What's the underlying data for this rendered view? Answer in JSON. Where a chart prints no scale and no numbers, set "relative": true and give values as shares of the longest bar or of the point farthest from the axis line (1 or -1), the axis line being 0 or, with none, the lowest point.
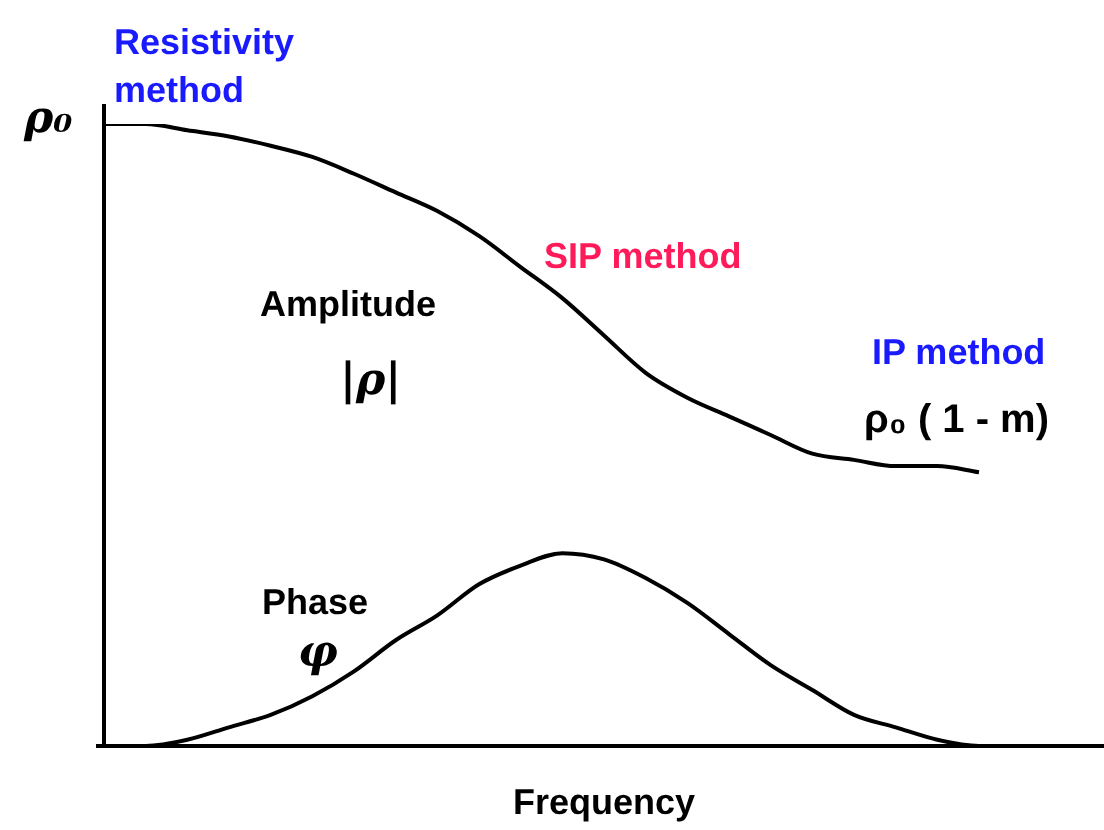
{
  "chart_data": {
    "type": "line",
    "relative": true,
    "xlabel": "Frequency",
    "legend": false,
    "marker": "none",
    "grid": false,
    "categories": [
      null,
      null,
      null,
      null,
      null,
      null,
      null,
      null,
      null,
      null,
      null,
      null,
      null,
      null,
      null,
      null,
      null,
      null,
      null,
      null,
      null,
      null,
      null,
      null,
      null
    ],
    "series": [
      {
        "name": "Amplitude |ρ|",
        "color": "#000000",
        "values": [
          1.0,
          1.0,
          0.99,
          0.98,
          0.965,
          0.947,
          0.92,
          0.89,
          0.86,
          0.82,
          0.77,
          0.72,
          0.66,
          0.6,
          0.56,
          0.53,
          0.5,
          0.47,
          0.46,
          0.45,
          0.45,
          0.44,
          null,
          null,
          null
        ]
      },
      {
        "name": "Phase φ",
        "color": "#000000",
        "values": [
          0,
          0,
          0.01,
          0.03,
          0.05,
          0.08,
          0.12,
          0.17,
          0.21,
          0.26,
          0.29,
          0.31,
          0.3,
          0.27,
          0.23,
          0.18,
          0.13,
          0.09,
          0.05,
          0.03,
          0.01,
          0,
          0,
          null,
          null
        ]
      }
    ],
    "annotations": [
      "ρ₀",
      "Resistivity method",
      "SIP method",
      "IP method",
      "ρ₀ ( 1 - m)"
    ]
  }
}
